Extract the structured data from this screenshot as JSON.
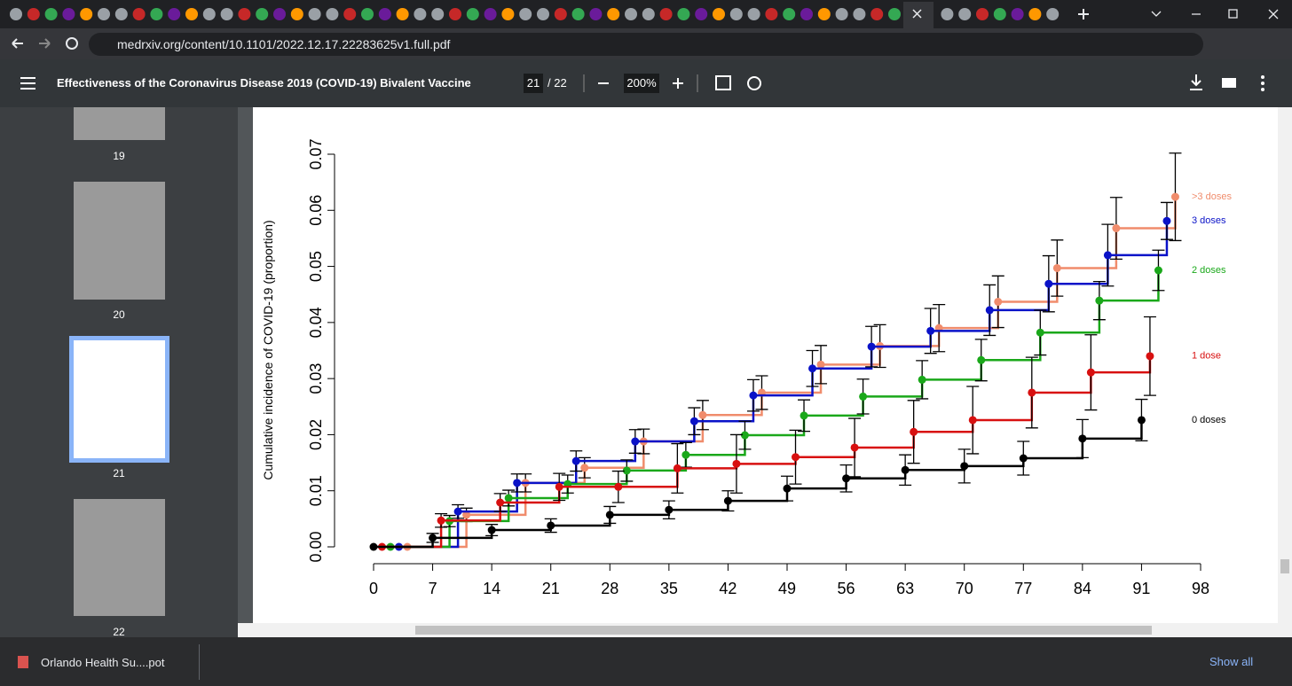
{
  "browser": {
    "url": "medrxiv.org/content/10.1101/2022.12.17.22283625v1.full.pdf"
  },
  "pdf": {
    "title": "Effectiveness of the Coronavirus Disease 2019 (COVID-19) Bivalent Vaccine",
    "page": "21",
    "page_total": "/ 22",
    "zoom": "200%",
    "thumbnails": [
      "19",
      "20",
      "21",
      "22"
    ]
  },
  "download": {
    "file": "Orlando Health Su....pot",
    "show_all": "Show all"
  },
  "chart_data": {
    "type": "line",
    "step": true,
    "y_label": "Cumulative incidence of COVID-19 (proportion)",
    "xlim": [
      0,
      98
    ],
    "xticks": [
      0,
      7,
      14,
      21,
      28,
      35,
      42,
      49,
      56,
      63,
      70,
      77,
      84,
      91,
      98
    ],
    "ylim": [
      0,
      0.07
    ],
    "yticks": [
      {
        "value": 0,
        "label": "0.00"
      },
      {
        "value": 0.01,
        "label": "0.01"
      },
      {
        "value": 0.02,
        "label": "0.02"
      },
      {
        "value": 0.03,
        "label": "0.03"
      },
      {
        "value": 0.04,
        "label": "0.04"
      },
      {
        "value": 0.05,
        "label": "0.05"
      },
      {
        "value": 0.06,
        "label": "0.06"
      },
      {
        "value": 0.07,
        "label": "0.07"
      }
    ],
    "series": [
      {
        "name": ">3 doses",
        "color": "#f08c6c",
        "x": [
          4,
          11,
          18,
          25,
          32,
          39,
          46,
          53,
          60,
          67,
          74,
          81,
          88,
          95
        ],
        "values": [
          0,
          0.0057,
          0.0114,
          0.0141,
          0.0188,
          0.0235,
          0.0275,
          0.0325,
          0.0358,
          0.039,
          0.0437,
          0.0497,
          0.0568,
          0.0624
        ],
        "errors": [
          0,
          0.0012,
          0.0016,
          0.0018,
          0.0022,
          0.0026,
          0.003,
          0.0034,
          0.0038,
          0.0042,
          0.0046,
          0.005,
          0.0055,
          0.0078
        ]
      },
      {
        "name": "3 doses",
        "color": "#0a12c8",
        "x": [
          3,
          10,
          17,
          24,
          31,
          38,
          45,
          52,
          59,
          66,
          73,
          80,
          87,
          94
        ],
        "values": [
          0,
          0.0063,
          0.0114,
          0.0153,
          0.0188,
          0.0224,
          0.027,
          0.0318,
          0.0357,
          0.0385,
          0.0422,
          0.0469,
          0.052,
          0.0581
        ],
        "errors": [
          0,
          0.0012,
          0.0016,
          0.0018,
          0.0021,
          0.0024,
          0.0028,
          0.0032,
          0.0036,
          0.004,
          0.0045,
          0.005,
          0.0055,
          0.0033
        ]
      },
      {
        "name": "2 doses",
        "color": "#1aa81a",
        "x": [
          2,
          9,
          16,
          23,
          30,
          37,
          44,
          51,
          58,
          65,
          72,
          79,
          86,
          93
        ],
        "values": [
          0,
          0.0046,
          0.0087,
          0.0112,
          0.0136,
          0.0164,
          0.0199,
          0.0234,
          0.0268,
          0.0298,
          0.0333,
          0.0382,
          0.0439,
          0.0493
        ],
        "errors": [
          0,
          0.001,
          0.0014,
          0.0016,
          0.0019,
          0.0022,
          0.0025,
          0.0028,
          0.0031,
          0.0034,
          0.0037,
          0.004,
          0.0034,
          0.0036
        ]
      },
      {
        "name": "1 dose",
        "color": "#d81010",
        "x": [
          1,
          8,
          15,
          22,
          29,
          36,
          43,
          50,
          57,
          64,
          71,
          78,
          85,
          92
        ],
        "values": [
          0,
          0.0047,
          0.0079,
          0.0107,
          0.0107,
          0.014,
          0.0148,
          0.016,
          0.0177,
          0.0205,
          0.0226,
          0.0275,
          0.0311,
          0.034
        ],
        "errors": [
          0,
          0.0012,
          0.0016,
          0.0024,
          0.0028,
          0.0044,
          0.0052,
          0.0048,
          0.0052,
          0.0056,
          0.006,
          0.0063,
          0.0067,
          0.007
        ]
      },
      {
        "name": "0 doses",
        "color": "#000000",
        "x": [
          0,
          7,
          14,
          21,
          28,
          35,
          42,
          49,
          56,
          63,
          70,
          77,
          84,
          91
        ],
        "values": [
          0,
          0.0016,
          0.003,
          0.0038,
          0.0057,
          0.0066,
          0.0082,
          0.0104,
          0.0122,
          0.0137,
          0.0144,
          0.0158,
          0.0193,
          0.0226
        ],
        "errors": [
          0,
          0.0008,
          0.001,
          0.0012,
          0.0015,
          0.0016,
          0.0018,
          0.0022,
          0.0024,
          0.0027,
          0.003,
          0.003,
          0.0034,
          0.0037
        ]
      }
    ]
  }
}
